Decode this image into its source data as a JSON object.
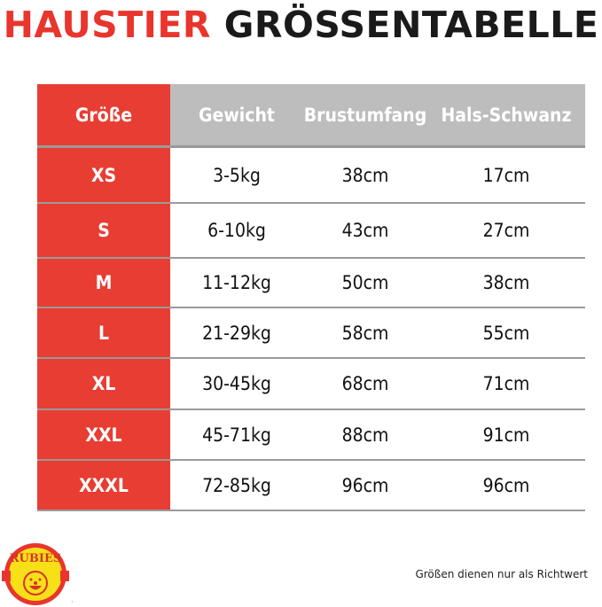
{
  "title": {
    "part1": "HAUSTIER",
    "part2": "GRÖSSENTABELLE"
  },
  "table": {
    "headers": [
      "Größe",
      "Gewicht",
      "Brustumfang",
      "Hals-Schwanz"
    ],
    "rows": [
      [
        "XS",
        "3-5kg",
        "38cm",
        "17cm"
      ],
      [
        "S",
        "6-10kg",
        "43cm",
        "27cm"
      ],
      [
        "M",
        "11-12kg",
        "50cm",
        "38cm"
      ],
      [
        "L",
        "21-29kg",
        "58cm",
        "55cm"
      ],
      [
        "XL",
        "30-45kg",
        "68cm",
        "71cm"
      ],
      [
        "XXL",
        "45-71kg",
        "88cm",
        "91cm"
      ],
      [
        "XXXL",
        "72-85kg",
        "96cm",
        "96cm"
      ]
    ]
  },
  "logo": {
    "text": "RUBIES",
    "tm": "™"
  },
  "note": "Größen dienen nur als Richtwert",
  "colors": {
    "accent": "#e83d33",
    "header": "#bdbdbd",
    "logo_yellow": "#f7e017"
  }
}
